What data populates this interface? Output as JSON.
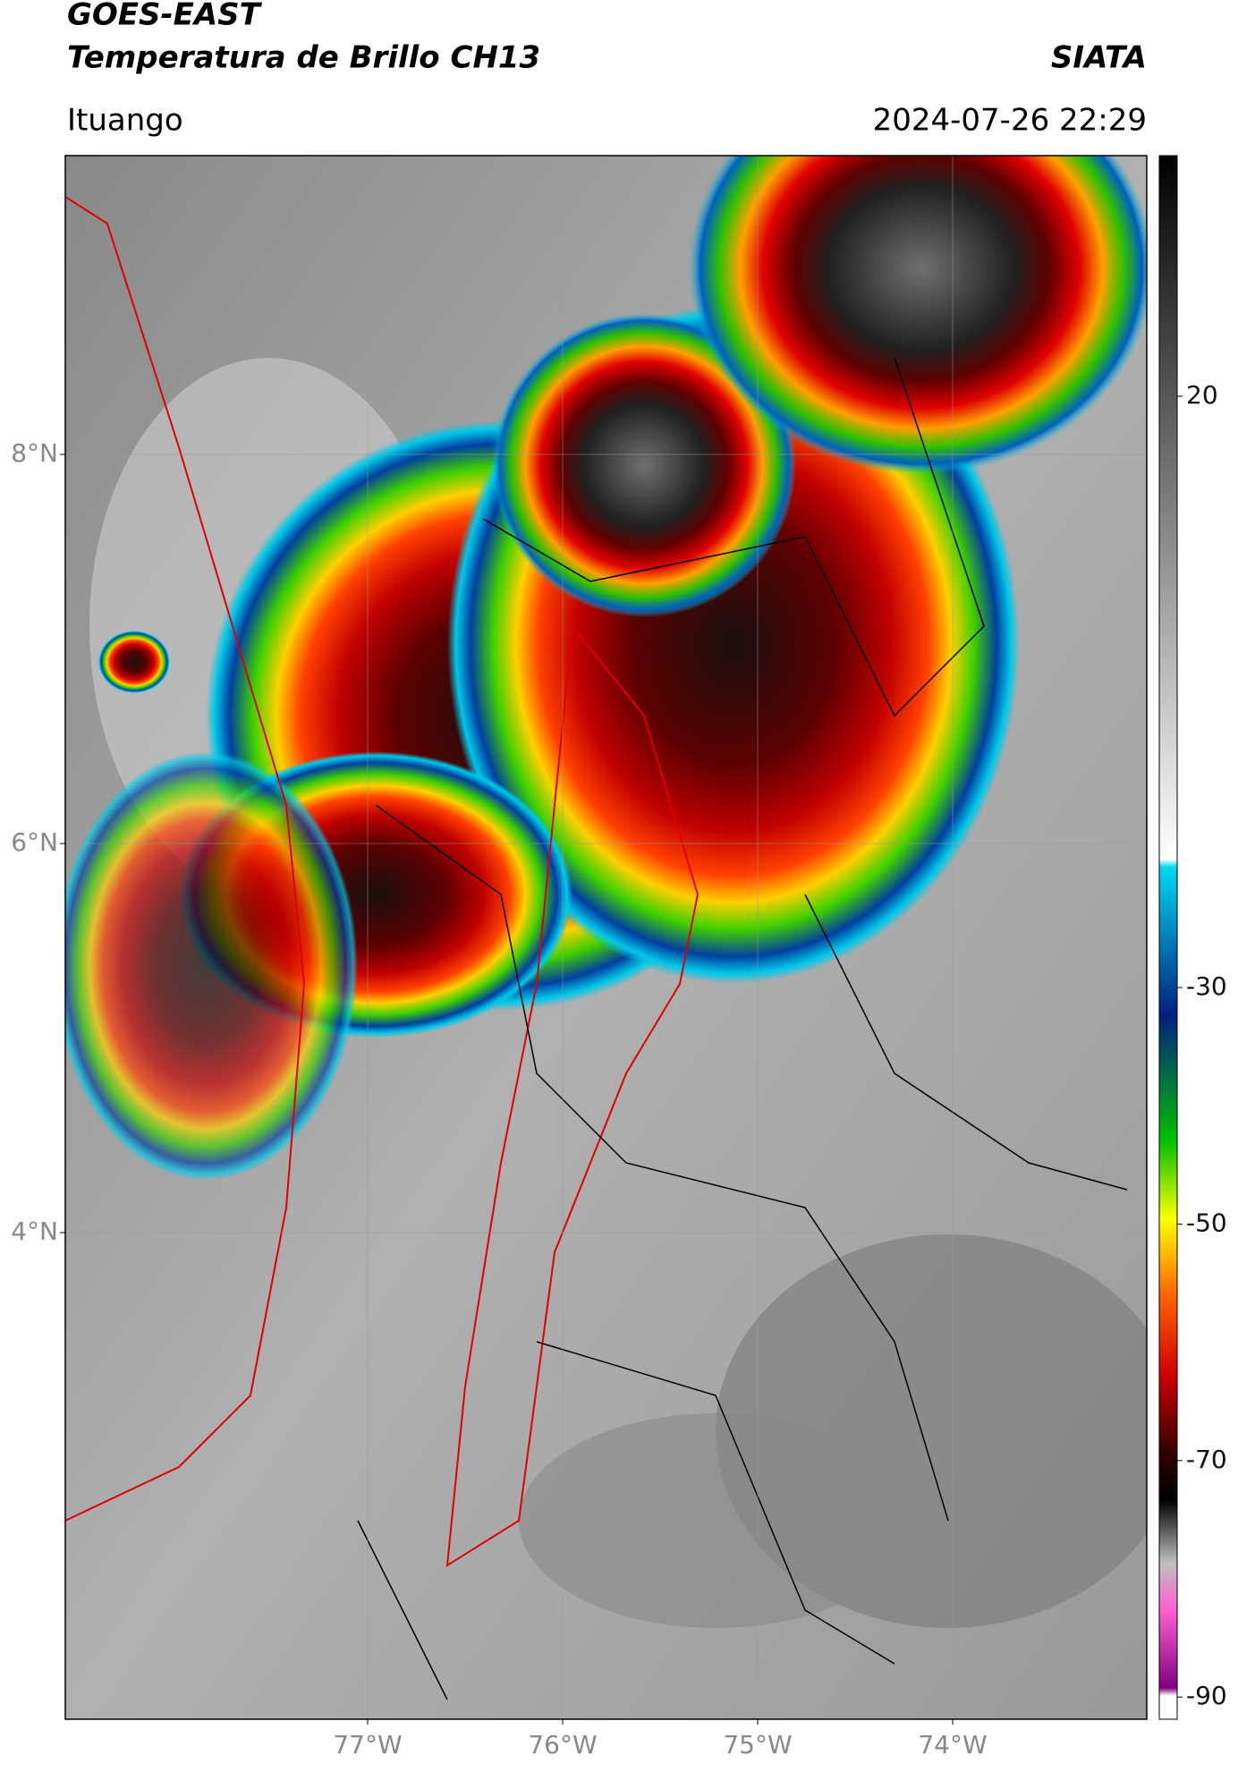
{
  "map": {
    "title": "GOES-EAST",
    "subtitle": "Temperatura de Brillo CH13",
    "source": "SIATA",
    "region": "Ituango",
    "timestamp": "2024-07-26 22:29",
    "lat_ticks": [
      {
        "value": 8,
        "label": "8°N"
      },
      {
        "value": 6,
        "label": "6°N"
      },
      {
        "value": 4,
        "label": "4°N"
      }
    ],
    "lon_ticks": [
      {
        "value": -77,
        "label": "77°W"
      },
      {
        "value": -76,
        "label": "76°W"
      },
      {
        "value": -75,
        "label": "75°W"
      },
      {
        "value": -74,
        "label": "74°W"
      }
    ],
    "colorbar": {
      "ticks": [
        20,
        -30,
        -50,
        -70,
        -90
      ]
    }
  }
}
